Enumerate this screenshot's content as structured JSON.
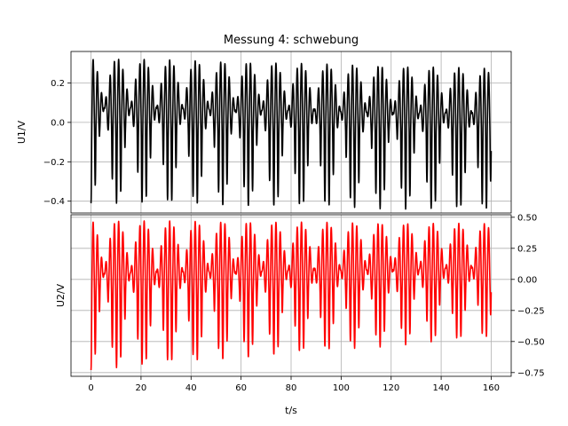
{
  "chart_data": {
    "type": "line",
    "title": "Messung 4: schwebung",
    "xlabel": "t/s",
    "xlim": [
      -8,
      168
    ],
    "xticks": [
      0,
      20,
      40,
      60,
      80,
      100,
      120,
      140,
      160
    ],
    "xtick_labels": [
      "0",
      "20",
      "40",
      "60",
      "80",
      "100",
      "120",
      "140",
      "160"
    ],
    "grid": true,
    "panels": [
      {
        "ylabel": "U1/V",
        "ylim": [
          -0.46,
          0.36
        ],
        "yticks": [
          -0.4,
          -0.2,
          0.0,
          0.2
        ],
        "ytick_labels": [
          "−0.4",
          "−0.2",
          "0.0",
          "0.2"
        ],
        "ytick_side": "left",
        "series": [
          {
            "color": "#000000",
            "t_range": [
              0,
              160
            ],
            "carrier_period_s": 1.7,
            "beat_period_s": 10.5,
            "offset_V": -0.05,
            "envelope_max_V": [
              0.38,
              0.35
            ],
            "y_min_V": -0.44,
            "y_max_V": 0.32,
            "start_value_V": -0.24,
            "end_value_V": -0.1
          }
        ]
      },
      {
        "ylabel": "U2/V",
        "ylim": [
          -0.78,
          0.52
        ],
        "yticks": [
          -0.75,
          -0.5,
          -0.25,
          0.0,
          0.25,
          0.5
        ],
        "ytick_labels": [
          "−0.75",
          "−0.50",
          "−0.25",
          "0.00",
          "0.25",
          "0.50"
        ],
        "ytick_side": "right",
        "series": [
          {
            "color": "#ff0000",
            "t_range": [
              0,
              160
            ],
            "carrier_period_s": 1.7,
            "beat_period_s": 10.5,
            "offset_V": -0.11,
            "envelope_max_V": [
              0.62,
              0.52
            ],
            "y_min_V": -0.73,
            "y_max_V": 0.47,
            "start_value_V": -0.5,
            "end_value_V": -0.1
          }
        ]
      }
    ]
  }
}
